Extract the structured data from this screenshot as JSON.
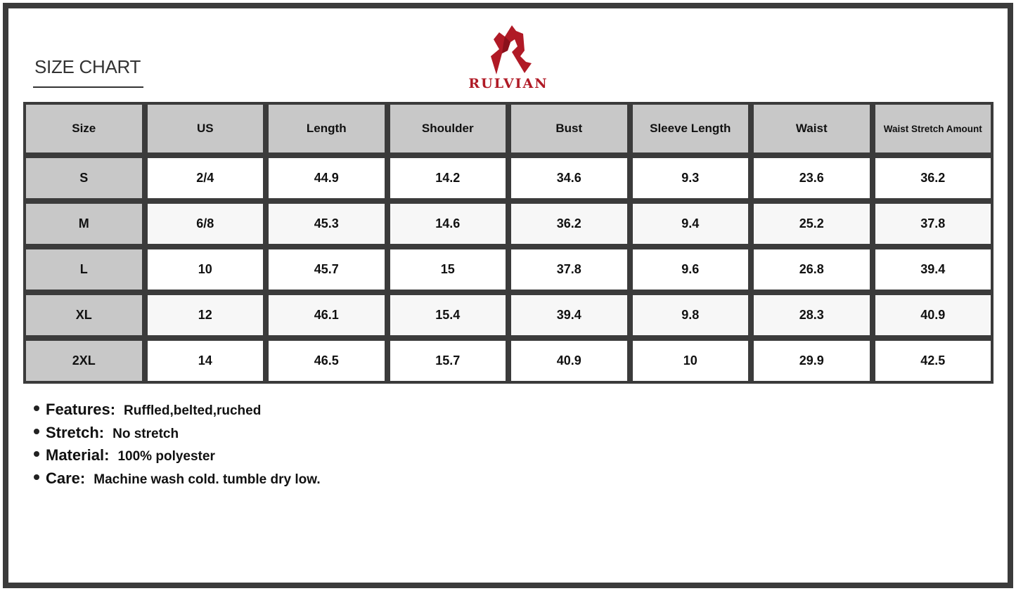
{
  "title": "SIZE CHART",
  "brand": {
    "name": "RULVIAN",
    "color": "#b01a26"
  },
  "table": {
    "headers": [
      "Size",
      "US",
      "Length",
      "Shoulder",
      "Bust",
      "Sleeve Length",
      "Waist",
      "Waist Stretch Amount"
    ],
    "rows": [
      [
        "S",
        "2/4",
        "44.9",
        "14.2",
        "34.6",
        "9.3",
        "23.6",
        "36.2"
      ],
      [
        "M",
        "6/8",
        "45.3",
        "14.6",
        "36.2",
        "9.4",
        "25.2",
        "37.8"
      ],
      [
        "L",
        "10",
        "45.7",
        "15",
        "37.8",
        "9.6",
        "26.8",
        "39.4"
      ],
      [
        "XL",
        "12",
        "46.1",
        "15.4",
        "39.4",
        "9.8",
        "28.3",
        "40.9"
      ],
      [
        "2XL",
        "14",
        "46.5",
        "15.7",
        "40.9",
        "10",
        "29.9",
        "42.5"
      ]
    ]
  },
  "notes": [
    {
      "label": "Features:",
      "value": "Ruffled,belted,ruched"
    },
    {
      "label": "Stretch:",
      "value": "No stretch"
    },
    {
      "label": "Material:",
      "value": "100% polyester"
    },
    {
      "label": "Care:",
      "value": "Machine wash cold. tumble dry low."
    }
  ]
}
